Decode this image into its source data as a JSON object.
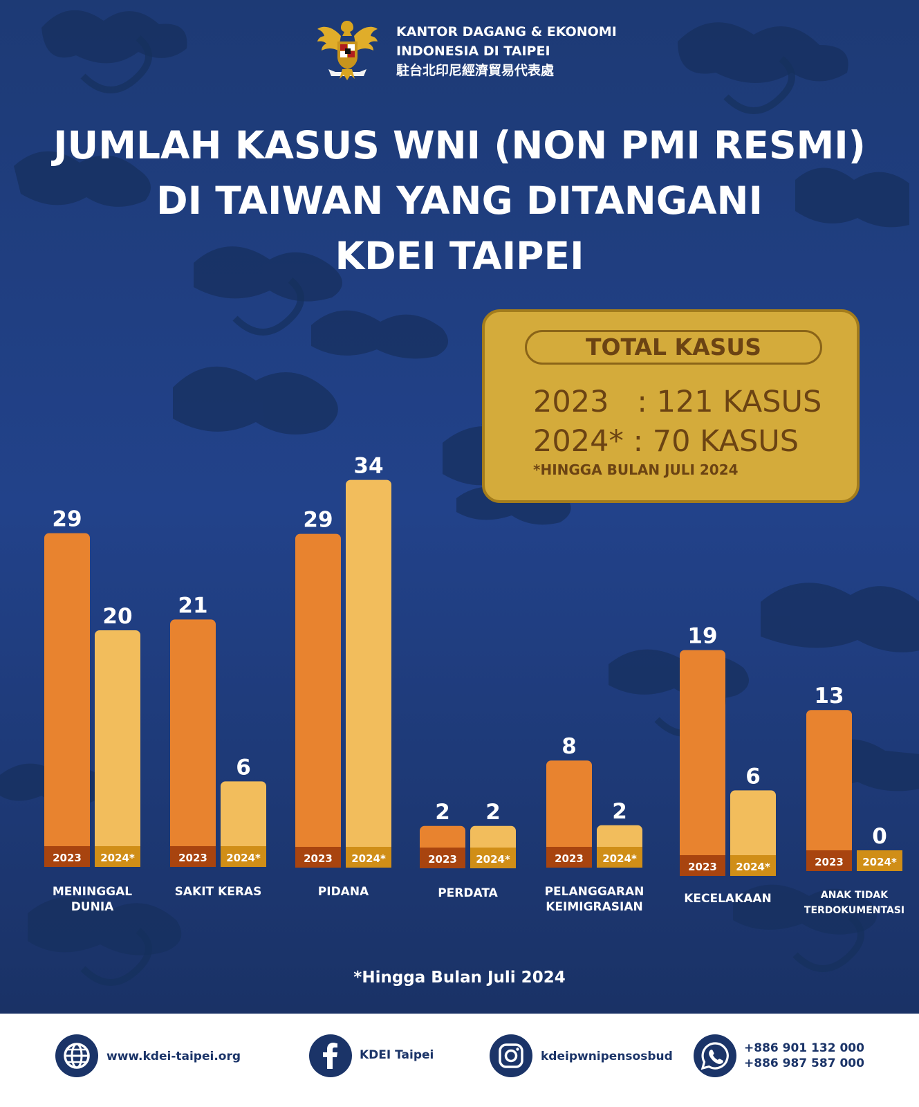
{
  "organization": {
    "lines": [
      "KANTOR DAGANG & EKONOMI",
      "INDONESIA DI TAIPEI",
      "駐台北印尼經濟貿易代表處"
    ]
  },
  "title_lines": [
    "JUMLAH KASUS WNI (NON PMI RESMI)",
    "DI TAIWAN YANG DITANGANI",
    "KDEI TAIPEI"
  ],
  "total_box": {
    "heading": "TOTAL KASUS",
    "rows": [
      "2023   : 121 KASUS",
      "2024* : 70 KASUS"
    ],
    "note": "*HINGGA BULAN JULI 2024"
  },
  "chart_data": {
    "type": "bar",
    "categories": [
      [
        "MENINGGAL",
        "DUNIA"
      ],
      [
        "SAKIT KERAS"
      ],
      [
        "PIDANA"
      ],
      [
        "PERDATA"
      ],
      [
        "PELANGGARAN",
        "KEIMIGRASIAN"
      ],
      [
        "KECELAKAAN"
      ],
      [
        "ANAK TIDAK",
        "TERDOKUMENTASI"
      ]
    ],
    "series": [
      {
        "name": "2023",
        "values": [
          29,
          21,
          29,
          2,
          8,
          19,
          13
        ]
      },
      {
        "name": "2024*",
        "values": [
          20,
          6,
          34,
          2,
          2,
          6,
          0
        ]
      }
    ],
    "colors": {
      "series_2023": "#e8832f",
      "series_2024": "#f2bd5c",
      "tag_2023": "#a8440f",
      "tag_2024": "#d08e17"
    }
  },
  "footnote": "*Hingga Bulan Juli 2024",
  "footer": {
    "website": "www.kdei-taipei.org",
    "facebook": "KDEI Taipei",
    "instagram": "kdeipwnipensosbud",
    "phones": [
      "+886 901 132 000",
      "+886 987 587 000"
    ],
    "icons": [
      "globe-icon",
      "facebook-icon",
      "instagram-icon",
      "whatsapp-icon"
    ]
  }
}
